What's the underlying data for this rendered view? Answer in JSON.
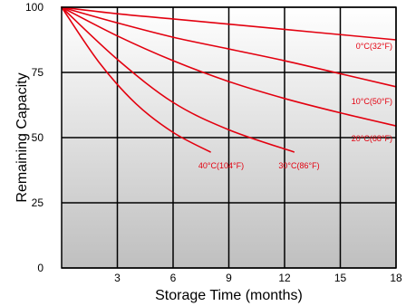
{
  "chart_data": {
    "type": "line",
    "title": "",
    "xlabel": "Storage Time (months)",
    "ylabel": "Remaining Capacity",
    "xlim": [
      0,
      18
    ],
    "ylim": [
      0,
      100
    ],
    "x_ticks": [
      "3",
      "6",
      "9",
      "12",
      "15",
      "18"
    ],
    "y_ticks": [
      "0",
      "25",
      "50",
      "75",
      "100"
    ],
    "grid": true,
    "line_color": "#e3000f",
    "series": [
      {
        "name": "0°C(32°F)",
        "x": [
          0,
          3,
          6,
          9,
          12,
          15,
          18
        ],
        "y": [
          100,
          97.5,
          95.5,
          93.5,
          91.5,
          89.5,
          87.5
        ]
      },
      {
        "name": "10°C(50°F)",
        "x": [
          0,
          3,
          6,
          9,
          12,
          15,
          18
        ],
        "y": [
          100,
          94,
          88.5,
          84,
          79.5,
          74.5,
          69.5
        ]
      },
      {
        "name": "20°C(68°F)",
        "x": [
          0,
          3,
          6,
          9,
          12,
          15,
          18
        ],
        "y": [
          100,
          89,
          79.5,
          71.5,
          65,
          59.5,
          54.5
        ]
      },
      {
        "name": "30°C(86°F)",
        "x": [
          0,
          3,
          6,
          9,
          12.5
        ],
        "y": [
          100,
          80,
          63.5,
          53,
          44.5
        ]
      },
      {
        "name": "40°C(104°F)",
        "x": [
          0,
          2,
          4,
          6,
          8
        ],
        "y": [
          100,
          79,
          63,
          52,
          44.5
        ]
      }
    ]
  }
}
